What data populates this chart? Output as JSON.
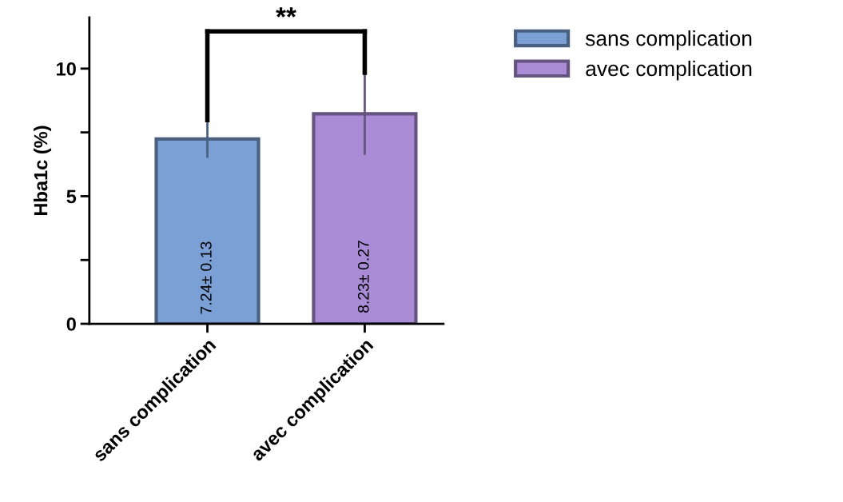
{
  "chart_data": {
    "type": "bar",
    "ylabel": "Hba1c (%)",
    "categories": [
      "sans complication",
      "avec complication"
    ],
    "series": [
      {
        "name": "sans complication",
        "color": "#7ba0d6",
        "values": [
          7.24,
          null
        ],
        "errors": [
          0.74,
          null
        ],
        "value_labels": [
          "7.24± 0.13",
          null
        ]
      },
      {
        "name": "avec complication",
        "color": "#a98bd6",
        "values": [
          null,
          8.23
        ],
        "errors": [
          null,
          1.61
        ],
        "value_labels": [
          null,
          "8.23± 0.27"
        ]
      }
    ],
    "ylim": [
      0,
      12
    ],
    "yticks": [
      0,
      {
        "value": 2.5,
        "label": null
      },
      5,
      {
        "value": 7.5,
        "label": null
      },
      10
    ],
    "annotations": [
      "**"
    ],
    "legend": "right",
    "grid": false
  }
}
